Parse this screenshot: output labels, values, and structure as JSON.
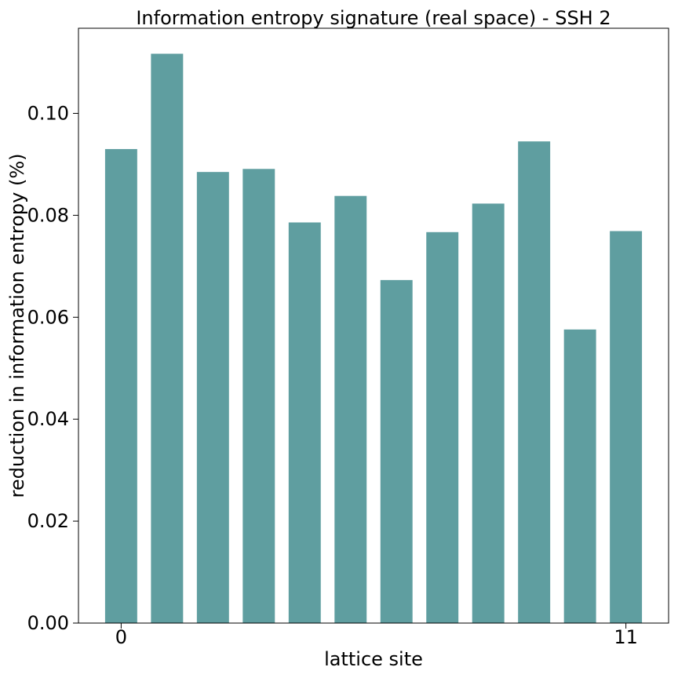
{
  "chart_data": {
    "type": "bar",
    "title": "Information entropy signature (real space) - SSH 2",
    "xlabel": "lattice site",
    "ylabel": "reduction in information entropy (%)",
    "x": [
      0,
      1,
      2,
      3,
      4,
      5,
      6,
      7,
      8,
      9,
      10,
      11
    ],
    "values": [
      0.093,
      0.1117,
      0.0885,
      0.0891,
      0.0786,
      0.0838,
      0.0673,
      0.0767,
      0.0823,
      0.0945,
      0.0576,
      0.0769
    ],
    "xticks": [
      "0",
      "11"
    ],
    "yticks": [
      "0.00",
      "0.02",
      "0.04",
      "0.06",
      "0.08",
      "0.10"
    ],
    "ylim": [
      0,
      0.1167
    ],
    "xlim": [
      -0.93,
      11.93
    ],
    "bar_color": "#5f9ea0",
    "grid": false,
    "legend": "none"
  }
}
